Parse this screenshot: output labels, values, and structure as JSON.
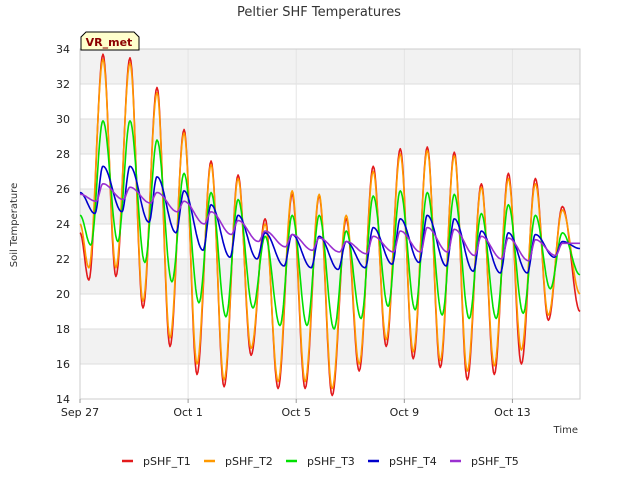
{
  "chart_data": {
    "type": "line",
    "title": "Peltier SHF Temperatures",
    "xlabel": "Time",
    "ylabel": "Soil Temperature",
    "badge": "VR_met",
    "ylim": [
      14,
      34
    ],
    "yticks": [
      14,
      16,
      18,
      20,
      22,
      24,
      26,
      28,
      30,
      32,
      34
    ],
    "xlim_days": [
      0,
      18.5
    ],
    "xticks": [
      {
        "label": "Sep 27",
        "day": 0
      },
      {
        "label": "Oct 1",
        "day": 4
      },
      {
        "label": "Oct 5",
        "day": 8
      },
      {
        "label": "Oct 9",
        "day": 12
      },
      {
        "label": "Oct 13",
        "day": 16
      }
    ],
    "grid": true,
    "legend_position": "bottom",
    "day_peaks": [
      0.85,
      1.85,
      2.85,
      3.85,
      4.85,
      5.85,
      6.85,
      7.85,
      8.85,
      9.85,
      10.85,
      11.85,
      12.85,
      13.85,
      14.85,
      15.85,
      16.85,
      17.85
    ],
    "series": [
      {
        "name": "pSHF_T1",
        "color": "#e31a1c",
        "start": 23.5,
        "min_times": [
          0.33,
          1.33,
          2.33,
          3.33,
          4.33,
          5.33,
          6.33,
          7.33,
          8.33,
          9.33,
          10.33,
          11.33,
          12.33,
          13.33,
          14.33,
          15.33,
          16.33,
          17.33
        ],
        "mins": [
          20.8,
          21.0,
          19.2,
          17.0,
          15.4,
          14.7,
          16.5,
          14.6,
          14.6,
          14.2,
          15.6,
          17.0,
          16.3,
          15.8,
          15.1,
          15.4,
          16.0,
          18.5
        ],
        "peaks": [
          33.7,
          33.5,
          31.8,
          29.4,
          27.6,
          26.8,
          24.3,
          25.7,
          25.6,
          24.3,
          27.3,
          28.3,
          28.4,
          28.1,
          26.3,
          26.9,
          26.6,
          25.0
        ],
        "end": 19.0
      },
      {
        "name": "pSHF_T2",
        "color": "#ff9900",
        "start": 24.0,
        "min_times": [
          0.33,
          1.33,
          2.33,
          3.33,
          4.33,
          5.33,
          6.33,
          7.33,
          8.33,
          9.33,
          10.33,
          11.33,
          12.33,
          13.33,
          14.33,
          15.33,
          16.33,
          17.33
        ],
        "mins": [
          21.5,
          21.5,
          19.6,
          17.5,
          16.0,
          15.1,
          16.9,
          15.0,
          15.0,
          14.6,
          16.0,
          17.4,
          16.7,
          16.2,
          15.6,
          15.9,
          16.8,
          18.8
        ],
        "peaks": [
          33.4,
          33.2,
          31.5,
          29.2,
          27.4,
          26.6,
          24.0,
          25.9,
          25.7,
          24.5,
          27.0,
          28.0,
          28.2,
          27.9,
          26.1,
          26.6,
          26.3,
          24.8
        ],
        "end": 20.0
      },
      {
        "name": "pSHF_T3",
        "color": "#00e000",
        "start": 24.5,
        "min_times": [
          0.4,
          1.4,
          2.4,
          3.4,
          4.4,
          5.4,
          6.4,
          7.4,
          8.4,
          9.4,
          10.4,
          11.4,
          12.4,
          13.4,
          14.4,
          15.4,
          16.4,
          17.4
        ],
        "mins": [
          22.8,
          23.0,
          21.8,
          20.7,
          19.5,
          18.7,
          19.2,
          18.2,
          18.2,
          18.0,
          18.6,
          19.3,
          19.1,
          18.8,
          18.6,
          18.6,
          18.9,
          20.3
        ],
        "peaks": [
          29.9,
          29.9,
          28.8,
          26.9,
          25.8,
          25.4,
          23.3,
          24.5,
          24.5,
          23.6,
          25.6,
          25.9,
          25.8,
          25.7,
          24.6,
          25.1,
          24.5,
          23.5
        ],
        "end": 21.1
      },
      {
        "name": "pSHF_T4",
        "color": "#0000cc",
        "start": 25.8,
        "min_times": [
          0.55,
          1.55,
          2.55,
          3.55,
          4.55,
          5.55,
          6.55,
          7.55,
          8.55,
          9.55,
          10.55,
          11.55,
          12.55,
          13.55,
          14.55,
          15.55,
          16.55,
          17.55
        ],
        "mins": [
          24.6,
          24.7,
          24.1,
          23.5,
          22.5,
          22.1,
          22.0,
          21.6,
          21.5,
          21.4,
          21.5,
          21.7,
          21.8,
          21.6,
          21.3,
          21.2,
          21.2,
          22.1
        ],
        "peaks": [
          27.3,
          27.3,
          26.7,
          25.9,
          25.1,
          24.5,
          23.5,
          23.4,
          23.3,
          23.0,
          23.8,
          24.3,
          24.5,
          24.3,
          23.6,
          23.5,
          23.4,
          23.0
        ],
        "end": 22.6
      },
      {
        "name": "pSHF_T5",
        "color": "#9b30d0",
        "start": 25.7,
        "min_times": [
          0.6,
          1.6,
          2.6,
          3.6,
          4.6,
          5.6,
          6.6,
          7.6,
          8.6,
          9.6,
          10.6,
          11.6,
          12.6,
          13.6,
          14.6,
          15.6,
          16.6,
          17.6
        ],
        "mins": [
          25.3,
          25.4,
          25.2,
          24.7,
          24.0,
          23.4,
          23.0,
          22.7,
          22.5,
          22.4,
          22.3,
          22.4,
          22.4,
          22.4,
          22.2,
          22.0,
          21.9,
          22.2
        ],
        "peaks": [
          26.3,
          26.1,
          25.8,
          25.3,
          24.7,
          24.2,
          23.6,
          23.4,
          23.2,
          23.0,
          23.3,
          23.6,
          23.8,
          23.7,
          23.3,
          23.2,
          23.1,
          22.9
        ],
        "end": 22.9
      }
    ]
  }
}
